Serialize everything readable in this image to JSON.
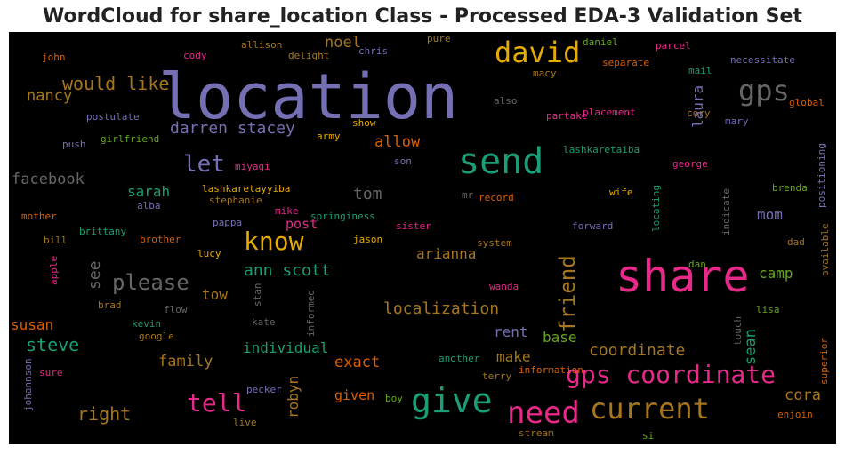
{
  "chart_data": {
    "type": "wordcloud",
    "title": "WordCloud for share_location Class - Processed EDA-3 Validation Set",
    "words": [
      {
        "text": "location",
        "color": "#7570b3"
      },
      {
        "text": "share",
        "color": "#e7298a"
      },
      {
        "text": "send",
        "color": "#1b9e77"
      },
      {
        "text": "david",
        "color": "#e6ab02"
      },
      {
        "text": "give",
        "color": "#1b9e77"
      },
      {
        "text": "need",
        "color": "#e7298a"
      },
      {
        "text": "current",
        "color": "#a6761d"
      },
      {
        "text": "gps coordinate",
        "color": "#e7298a"
      },
      {
        "text": "gps",
        "color": "#666666"
      },
      {
        "text": "know",
        "color": "#e6ab02"
      },
      {
        "text": "tell",
        "color": "#e7298a"
      },
      {
        "text": "let",
        "color": "#7570b3"
      },
      {
        "text": "please",
        "color": "#666666"
      },
      {
        "text": "friend",
        "color": "#a6761d"
      },
      {
        "text": "would like",
        "color": "#a6761d"
      },
      {
        "text": "darren stacey",
        "color": "#7570b3"
      },
      {
        "text": "ann scott",
        "color": "#1b9e77"
      },
      {
        "text": "steve",
        "color": "#1b9e77"
      },
      {
        "text": "right",
        "color": "#a6761d"
      },
      {
        "text": "localization",
        "color": "#a6761d"
      },
      {
        "text": "coordinate",
        "color": "#a6761d"
      },
      {
        "text": "facebook",
        "color": "#666666"
      },
      {
        "text": "laura",
        "color": "#7570b3"
      },
      {
        "text": "sean",
        "color": "#1b9e77"
      },
      {
        "text": "cora",
        "color": "#a6761d"
      },
      {
        "text": "robyn",
        "color": "#a6761d"
      },
      {
        "text": "tom",
        "color": "#666666"
      },
      {
        "text": "allow",
        "color": "#d95f02"
      },
      {
        "text": "arianna",
        "color": "#a6761d"
      },
      {
        "text": "family",
        "color": "#a6761d"
      },
      {
        "text": "exact",
        "color": "#d95f02"
      },
      {
        "text": "individual",
        "color": "#1b9e77"
      },
      {
        "text": "make",
        "color": "#a6761d"
      },
      {
        "text": "base",
        "color": "#66a61e"
      },
      {
        "text": "rent",
        "color": "#7570b3"
      },
      {
        "text": "camp",
        "color": "#66a61e"
      },
      {
        "text": "mom",
        "color": "#7570b3"
      },
      {
        "text": "nancy",
        "color": "#a6761d"
      },
      {
        "text": "noel",
        "color": "#a6761d"
      },
      {
        "text": "sarah",
        "color": "#1b9e77"
      },
      {
        "text": "see",
        "color": "#666666"
      },
      {
        "text": "tow",
        "color": "#a6761d"
      },
      {
        "text": "susan",
        "color": "#d95f02"
      },
      {
        "text": "post",
        "color": "#e7298a"
      },
      {
        "text": "given",
        "color": "#d95f02"
      },
      {
        "text": "lashkaretayyiba",
        "color": "#e6ab02"
      },
      {
        "text": "lashkaretaiba",
        "color": "#1b9e77"
      },
      {
        "text": "postulate",
        "color": "#7570b3"
      },
      {
        "text": "girlfriend",
        "color": "#66a61e"
      },
      {
        "text": "push",
        "color": "#7570b3"
      },
      {
        "text": "miyagi",
        "color": "#e7298a"
      },
      {
        "text": "army",
        "color": "#e6ab02"
      },
      {
        "text": "show",
        "color": "#e6ab02"
      },
      {
        "text": "son",
        "color": "#7570b3"
      },
      {
        "text": "stephanie",
        "color": "#a6761d"
      },
      {
        "text": "alba",
        "color": "#7570b3"
      },
      {
        "text": "mother",
        "color": "#d95f02"
      },
      {
        "text": "bill",
        "color": "#a6761d"
      },
      {
        "text": "brittany",
        "color": "#1b9e77"
      },
      {
        "text": "brother",
        "color": "#d95f02"
      },
      {
        "text": "pappa",
        "color": "#7570b3"
      },
      {
        "text": "mike",
        "color": "#e7298a"
      },
      {
        "text": "springiness",
        "color": "#1b9e77"
      },
      {
        "text": "mr",
        "color": "#666666"
      },
      {
        "text": "record",
        "color": "#d95f02"
      },
      {
        "text": "sister",
        "color": "#e7298a"
      },
      {
        "text": "jason",
        "color": "#e6ab02"
      },
      {
        "text": "system",
        "color": "#a6761d"
      },
      {
        "text": "forward",
        "color": "#7570b3"
      },
      {
        "text": "locating",
        "color": "#1b9e77"
      },
      {
        "text": "indicate",
        "color": "#666666"
      },
      {
        "text": "positioning",
        "color": "#7570b3"
      },
      {
        "text": "available",
        "color": "#a6761d"
      },
      {
        "text": "dad",
        "color": "#a6761d"
      },
      {
        "text": "brenda",
        "color": "#66a61e"
      },
      {
        "text": "george",
        "color": "#e7298a"
      },
      {
        "text": "wife",
        "color": "#e6ab02"
      },
      {
        "text": "apple",
        "color": "#e7298a"
      },
      {
        "text": "lucy",
        "color": "#e6ab02"
      },
      {
        "text": "brad",
        "color": "#a6761d"
      },
      {
        "text": "flow",
        "color": "#666666"
      },
      {
        "text": "stan",
        "color": "#666666"
      },
      {
        "text": "kate",
        "color": "#666666"
      },
      {
        "text": "informed",
        "color": "#666666"
      },
      {
        "text": "kevin",
        "color": "#1b9e77"
      },
      {
        "text": "google",
        "color": "#a6761d"
      },
      {
        "text": "wanda",
        "color": "#e7298a"
      },
      {
        "text": "dan",
        "color": "#66a61e"
      },
      {
        "text": "touch",
        "color": "#666666"
      },
      {
        "text": "lisa",
        "color": "#66a61e"
      },
      {
        "text": "another",
        "color": "#1b9e77"
      },
      {
        "text": "terry",
        "color": "#a6761d"
      },
      {
        "text": "information",
        "color": "#d95f02"
      },
      {
        "text": "sure",
        "color": "#e7298a"
      },
      {
        "text": "johannson",
        "color": "#7570b3"
      },
      {
        "text": "pecker",
        "color": "#7570b3"
      },
      {
        "text": "boy",
        "color": "#66a61e"
      },
      {
        "text": "live",
        "color": "#a6761d"
      },
      {
        "text": "stream",
        "color": "#a6761d"
      },
      {
        "text": "si",
        "color": "#66a61e"
      },
      {
        "text": "enjoin",
        "color": "#d95f02"
      },
      {
        "text": "superior",
        "color": "#d95f02"
      },
      {
        "text": "john",
        "color": "#d95f02"
      },
      {
        "text": "allison",
        "color": "#a6761d"
      },
      {
        "text": "cody",
        "color": "#e7298a"
      },
      {
        "text": "delight",
        "color": "#a6761d"
      },
      {
        "text": "chris",
        "color": "#7570b3"
      },
      {
        "text": "pure",
        "color": "#a6761d"
      },
      {
        "text": "daniel",
        "color": "#66a61e"
      },
      {
        "text": "parcel",
        "color": "#e7298a"
      },
      {
        "text": "separate",
        "color": "#d95f02"
      },
      {
        "text": "macy",
        "color": "#a6761d"
      },
      {
        "text": "mail",
        "color": "#1b9e77"
      },
      {
        "text": "necessitate",
        "color": "#7570b3"
      },
      {
        "text": "also",
        "color": "#666666"
      },
      {
        "text": "partake",
        "color": "#e7298a"
      },
      {
        "text": "placement",
        "color": "#e7298a"
      },
      {
        "text": "cory",
        "color": "#a6761d"
      },
      {
        "text": "mary",
        "color": "#7570b3"
      },
      {
        "text": "global",
        "color": "#d95f02"
      }
    ]
  }
}
